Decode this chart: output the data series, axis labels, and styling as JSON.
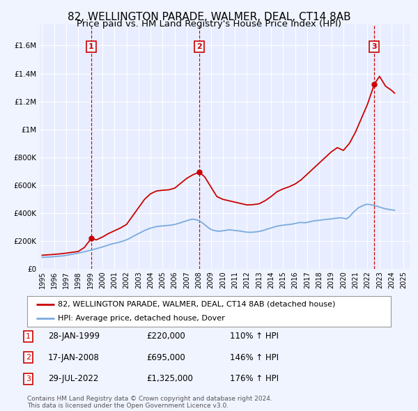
{
  "title": "82, WELLINGTON PARADE, WALMER, DEAL, CT14 8AB",
  "subtitle": "Price paid vs. HM Land Registry's House Price Index (HPI)",
  "title_fontsize": 11,
  "subtitle_fontsize": 9.5,
  "bg_color": "#f0f4ff",
  "plot_bg_color": "#e8eeff",
  "grid_color": "#ffffff",
  "ylabel_vals": [
    0,
    200000,
    400000,
    600000,
    800000,
    1000000,
    1200000,
    1400000,
    1600000
  ],
  "ylabel_labels": [
    "£0",
    "£200K",
    "£400K",
    "£600K",
    "£800K",
    "£1M",
    "£1.2M",
    "£1.4M",
    "£1.6M"
  ],
  "ylim": [
    0,
    1750000
  ],
  "xlim_start": 1994.8,
  "xlim_end": 2025.5,
  "xtick_years": [
    1995,
    1996,
    1997,
    1998,
    1999,
    2000,
    2001,
    2002,
    2003,
    2004,
    2005,
    2006,
    2007,
    2008,
    2009,
    2010,
    2011,
    2012,
    2013,
    2014,
    2015,
    2016,
    2017,
    2018,
    2019,
    2020,
    2021,
    2022,
    2023,
    2024,
    2025
  ],
  "sale_dates": [
    1999.074,
    2008.046,
    2022.571
  ],
  "sale_prices": [
    220000,
    695000,
    1325000
  ],
  "sale_labels": [
    "1",
    "2",
    "3"
  ],
  "hpi_line_color": "#7aaadd",
  "price_line_color": "#cc0000",
  "dashed_line_color": "#cc0000",
  "legend_label_price": "82, WELLINGTON PARADE, WALMER, DEAL, CT14 8AB (detached house)",
  "legend_label_hpi": "HPI: Average price, detached house, Dover",
  "table_entries": [
    {
      "num": "1",
      "date": "28-JAN-1999",
      "price": "£220,000",
      "hpi": "110% ↑ HPI"
    },
    {
      "num": "2",
      "date": "17-JAN-2008",
      "price": "£695,000",
      "hpi": "146% ↑ HPI"
    },
    {
      "num": "3",
      "date": "29-JUL-2022",
      "price": "£1,325,000",
      "hpi": "176% ↑ HPI"
    }
  ],
  "footer_text": "Contains HM Land Registry data © Crown copyright and database right 2024.\nThis data is licensed under the Open Government Licence v3.0.",
  "hpi_data_x": [
    1995.0,
    1995.25,
    1995.5,
    1995.75,
    1996.0,
    1996.25,
    1996.5,
    1996.75,
    1997.0,
    1997.25,
    1997.5,
    1997.75,
    1998.0,
    1998.25,
    1998.5,
    1998.75,
    1999.0,
    1999.25,
    1999.5,
    1999.75,
    2000.0,
    2000.25,
    2000.5,
    2000.75,
    2001.0,
    2001.25,
    2001.5,
    2001.75,
    2002.0,
    2002.25,
    2002.5,
    2002.75,
    2003.0,
    2003.25,
    2003.5,
    2003.75,
    2004.0,
    2004.25,
    2004.5,
    2004.75,
    2005.0,
    2005.25,
    2005.5,
    2005.75,
    2006.0,
    2006.25,
    2006.5,
    2006.75,
    2007.0,
    2007.25,
    2007.5,
    2007.75,
    2008.0,
    2008.25,
    2008.5,
    2008.75,
    2009.0,
    2009.25,
    2009.5,
    2009.75,
    2010.0,
    2010.25,
    2010.5,
    2010.75,
    2011.0,
    2011.25,
    2011.5,
    2011.75,
    2012.0,
    2012.25,
    2012.5,
    2012.75,
    2013.0,
    2013.25,
    2013.5,
    2013.75,
    2014.0,
    2014.25,
    2014.5,
    2014.75,
    2015.0,
    2015.25,
    2015.5,
    2015.75,
    2016.0,
    2016.25,
    2016.5,
    2016.75,
    2017.0,
    2017.25,
    2017.5,
    2017.75,
    2018.0,
    2018.25,
    2018.5,
    2018.75,
    2019.0,
    2019.25,
    2019.5,
    2019.75,
    2020.0,
    2020.25,
    2020.5,
    2020.75,
    2021.0,
    2021.25,
    2021.5,
    2021.75,
    2022.0,
    2022.25,
    2022.5,
    2022.75,
    2023.0,
    2023.25,
    2023.5,
    2023.75,
    2024.0,
    2024.25
  ],
  "hpi_data_y": [
    85000,
    86000,
    87000,
    88000,
    90000,
    92000,
    94000,
    96000,
    99000,
    103000,
    107000,
    111000,
    115000,
    120000,
    125000,
    130000,
    135000,
    141000,
    147000,
    153000,
    159000,
    166000,
    173000,
    180000,
    185000,
    190000,
    196000,
    202000,
    210000,
    220000,
    232000,
    244000,
    255000,
    266000,
    277000,
    286000,
    294000,
    300000,
    305000,
    308000,
    310000,
    312000,
    314000,
    316000,
    320000,
    326000,
    333000,
    340000,
    347000,
    354000,
    358000,
    355000,
    348000,
    335000,
    318000,
    300000,
    285000,
    278000,
    273000,
    272000,
    275000,
    278000,
    282000,
    280000,
    277000,
    275000,
    272000,
    268000,
    265000,
    264000,
    265000,
    267000,
    270000,
    275000,
    282000,
    289000,
    295000,
    302000,
    308000,
    312000,
    315000,
    318000,
    320000,
    323000,
    327000,
    332000,
    335000,
    332000,
    335000,
    340000,
    345000,
    348000,
    350000,
    353000,
    356000,
    358000,
    360000,
    363000,
    366000,
    368000,
    365000,
    360000,
    375000,
    400000,
    420000,
    440000,
    450000,
    460000,
    465000,
    462000,
    458000,
    452000,
    445000,
    438000,
    432000,
    428000,
    425000,
    422000
  ],
  "price_data_x": [
    1995.0,
    1995.5,
    1996.0,
    1996.5,
    1997.0,
    1997.5,
    1998.0,
    1998.5,
    1999.074,
    1999.5,
    2000.0,
    2000.5,
    2001.0,
    2001.5,
    2002.0,
    2002.5,
    2003.0,
    2003.5,
    2004.0,
    2004.5,
    2005.0,
    2005.5,
    2006.0,
    2006.5,
    2007.0,
    2007.5,
    2008.046,
    2008.5,
    2009.0,
    2009.5,
    2010.0,
    2010.5,
    2011.0,
    2011.5,
    2012.0,
    2012.5,
    2013.0,
    2013.5,
    2014.0,
    2014.5,
    2015.0,
    2015.5,
    2016.0,
    2016.5,
    2017.0,
    2017.5,
    2018.0,
    2018.5,
    2019.0,
    2019.5,
    2020.0,
    2020.5,
    2021.0,
    2021.5,
    2022.0,
    2022.571,
    2023.0,
    2023.5,
    2024.0,
    2024.25
  ],
  "price_data_y": [
    100000,
    103000,
    106000,
    110000,
    115000,
    121000,
    127000,
    155000,
    220000,
    210000,
    230000,
    255000,
    275000,
    295000,
    320000,
    380000,
    440000,
    500000,
    540000,
    560000,
    565000,
    568000,
    580000,
    615000,
    650000,
    675000,
    695000,
    660000,
    590000,
    520000,
    500000,
    490000,
    480000,
    470000,
    460000,
    462000,
    468000,
    490000,
    520000,
    555000,
    575000,
    590000,
    610000,
    640000,
    680000,
    720000,
    760000,
    800000,
    840000,
    870000,
    850000,
    900000,
    980000,
    1080000,
    1180000,
    1325000,
    1380000,
    1310000,
    1280000,
    1260000
  ]
}
